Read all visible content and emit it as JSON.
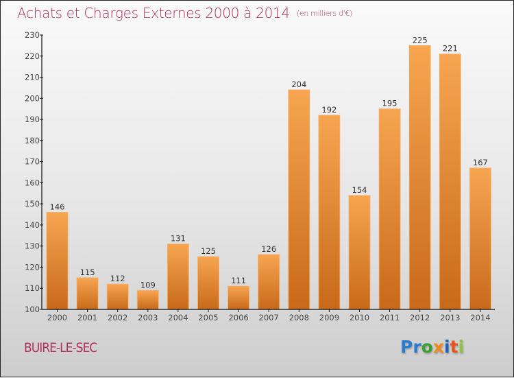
{
  "header": {
    "title": "Achats et Charges Externes 2000 à 2014",
    "subtitle": "(en milliers d'€)"
  },
  "footer": {
    "city": "BUIRE-LE-SEC",
    "logo": {
      "letters": [
        {
          "char": "P",
          "color": "#2a7ccc"
        },
        {
          "char": "r",
          "color": "#2a7ccc"
        },
        {
          "char": "o",
          "color": "#3aa036"
        },
        {
          "char": "x",
          "color": "#f08a1c"
        },
        {
          "char": "i",
          "color": "#1e5fb5"
        },
        {
          "char": "t",
          "color": "#e8541c"
        },
        {
          "char": "i",
          "color": "#8cc63f"
        }
      ]
    }
  },
  "colors": {
    "bar_top": "#f7a550",
    "bar_bottom": "#c76a1a",
    "title": "#b5305e"
  },
  "chart_data": {
    "type": "bar",
    "title": "Achats et Charges Externes 2000 à 2014",
    "subtitle": "(en milliers d'€)",
    "xlabel": "",
    "ylabel": "",
    "categories": [
      "2000",
      "2001",
      "2002",
      "2003",
      "2004",
      "2005",
      "2006",
      "2007",
      "2008",
      "2009",
      "2010",
      "2011",
      "2012",
      "2013",
      "2014"
    ],
    "values": [
      146,
      115,
      112,
      109,
      131,
      125,
      111,
      126,
      204,
      192,
      154,
      195,
      225,
      221,
      167
    ],
    "ylim": [
      100,
      230
    ],
    "yticks": [
      100,
      110,
      120,
      130,
      140,
      150,
      160,
      170,
      180,
      190,
      200,
      210,
      220,
      230
    ],
    "grid": false,
    "legend": "none"
  }
}
